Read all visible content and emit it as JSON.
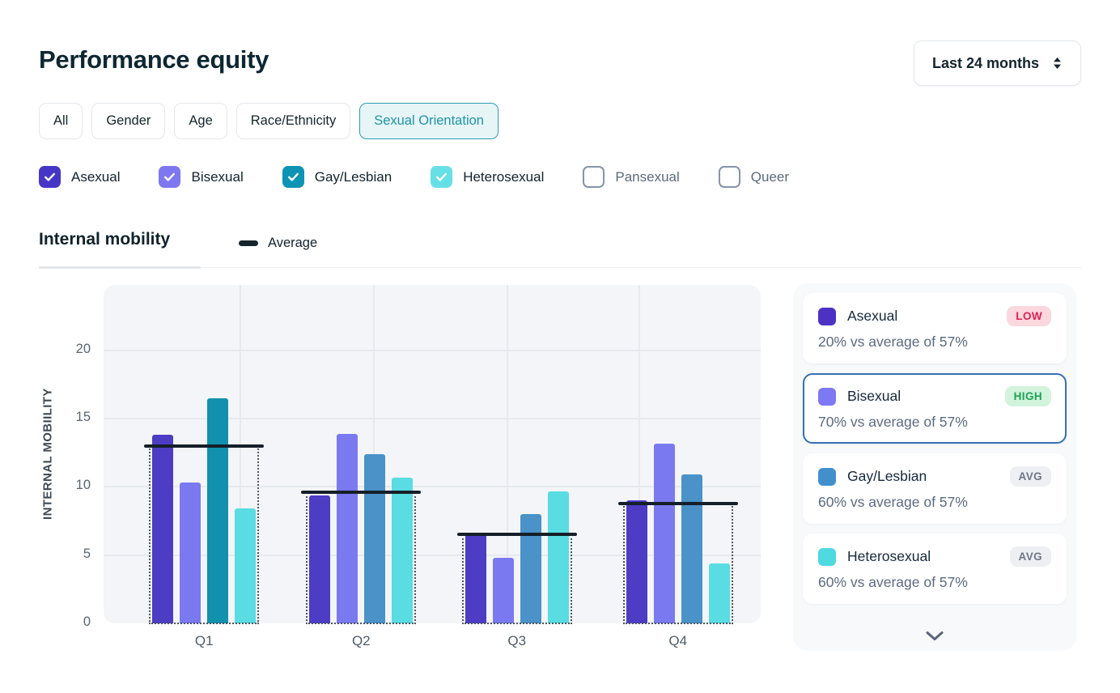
{
  "header": {
    "title": "Performance equity",
    "period_select": {
      "value": "Last 24 months"
    }
  },
  "filter_tabs": [
    {
      "label": "All",
      "selected": false
    },
    {
      "label": "Gender",
      "selected": false
    },
    {
      "label": "Age",
      "selected": false
    },
    {
      "label": "Race/Ethnicity",
      "selected": false
    },
    {
      "label": "Sexual Orientation",
      "selected": true
    }
  ],
  "legend_checkboxes": [
    {
      "label": "Asexual",
      "checked": true,
      "color": "#4636c6"
    },
    {
      "label": "Bisexual",
      "checked": true,
      "color": "#7d78ef"
    },
    {
      "label": "Gay/Lesbian",
      "checked": true,
      "color": "#0d93b4"
    },
    {
      "label": "Heterosexual",
      "checked": true,
      "color": "#66e0e6"
    },
    {
      "label": "Pansexual",
      "checked": false,
      "color": "#ffffff"
    },
    {
      "label": "Queer",
      "checked": false,
      "color": "#ffffff"
    }
  ],
  "section": {
    "title": "Internal mobility",
    "average_legend_label": "Average"
  },
  "chart_data": {
    "type": "bar",
    "title": "Internal mobility",
    "xlabel": "",
    "ylabel": "INTERNAL MOBIILITY",
    "categories": [
      "Q1",
      "Q2",
      "Q3",
      "Q4"
    ],
    "series": [
      {
        "name": "Asexual",
        "color": "#4d3cc4",
        "values": [
          13.8,
          9.4,
          6.6,
          9.0
        ]
      },
      {
        "name": "Bisexual",
        "color": "#7b79f0",
        "values": [
          10.3,
          13.9,
          4.8,
          13.2
        ]
      },
      {
        "name": "Gay/Lesbian",
        "color": "#4a92c8",
        "colors": [
          "#1191ad",
          "#4a92c8",
          "#4a92c8",
          "#4a92c8"
        ],
        "values": [
          16.5,
          12.4,
          8.0,
          10.9
        ]
      },
      {
        "name": "Heterosexual",
        "color": "#59dce2",
        "values": [
          8.4,
          10.7,
          9.7,
          4.4
        ]
      }
    ],
    "average_line": {
      "label": "Average",
      "color": "#141f29",
      "values": [
        13.0,
        9.6,
        6.5,
        8.8
      ]
    },
    "yticks": [
      0,
      5,
      10,
      15,
      20
    ],
    "ylim": [
      0,
      24.8
    ],
    "grid": true,
    "legend_position": "top"
  },
  "summary_cards": [
    {
      "name": "Asexual",
      "color": "#4b32c3",
      "badge": "LOW",
      "badge_type": "low",
      "text": "20% vs average of 57%",
      "selected": false
    },
    {
      "name": "Bisexual",
      "color": "#7d79f2",
      "badge": "HIGH",
      "badge_type": "high",
      "text": "70% vs average of 57%",
      "selected": true
    },
    {
      "name": "Gay/Lesbian",
      "color": "#4190cc",
      "badge": "AVG",
      "badge_type": "avg",
      "text": "60% vs average of 57%",
      "selected": false
    },
    {
      "name": "Heterosexual",
      "color": "#4fd9e0",
      "badge": "AVG",
      "badge_type": "avg",
      "text": "60% vs average of 57%",
      "selected": false
    }
  ]
}
